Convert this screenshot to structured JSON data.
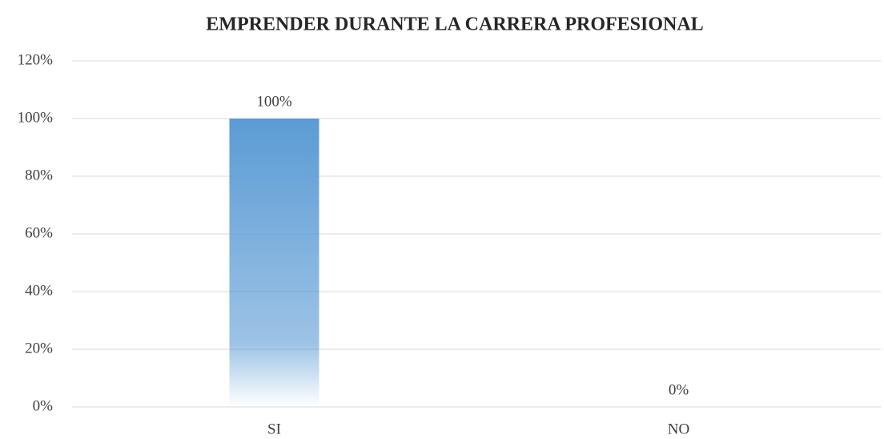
{
  "chart_data": {
    "type": "bar",
    "title": "EMPRENDER DURANTE LA CARRERA PROFESIONAL",
    "categories": [
      "SI",
      "NO"
    ],
    "values": [
      100,
      0
    ],
    "value_labels": [
      "100%",
      "0%"
    ],
    "color": "#5b9bd5",
    "ylim": [
      0,
      120
    ],
    "yticks": [
      {
        "value": 0,
        "label": "0%"
      },
      {
        "value": 20,
        "label": "20%"
      },
      {
        "value": 40,
        "label": "40%"
      },
      {
        "value": 60,
        "label": "60%"
      },
      {
        "value": 80,
        "label": "80%"
      },
      {
        "value": 100,
        "label": "100%"
      },
      {
        "value": 120,
        "label": "120%"
      }
    ],
    "grid": true
  }
}
